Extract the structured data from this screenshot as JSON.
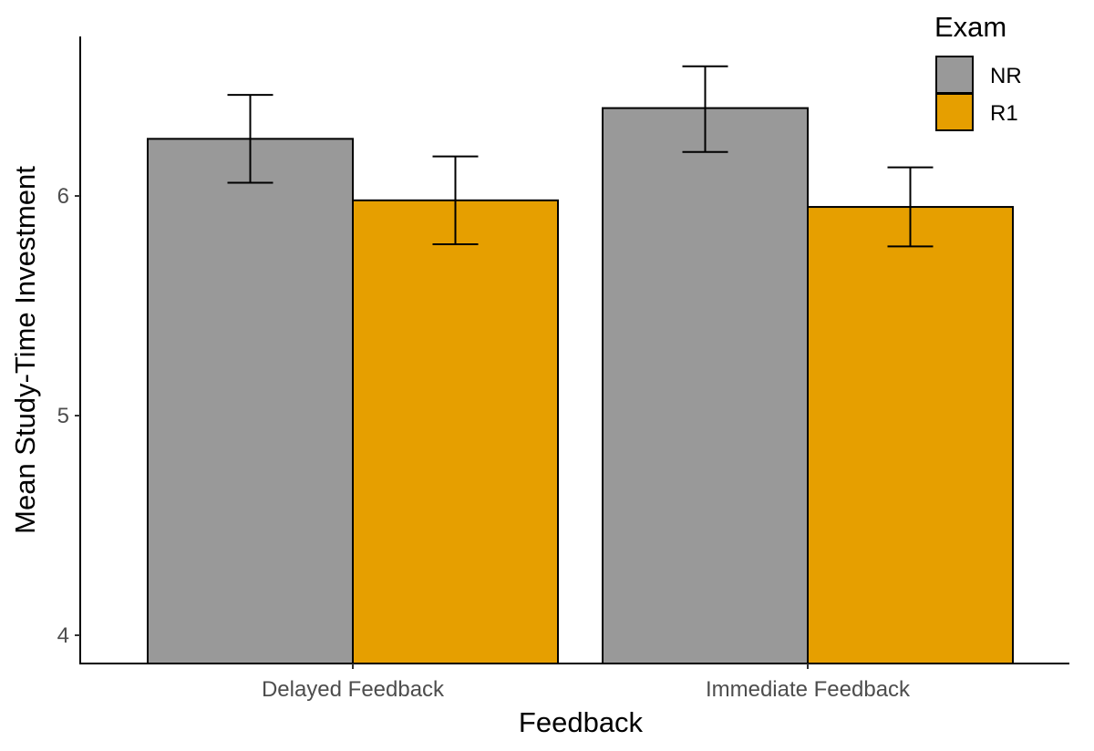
{
  "chart_data": {
    "type": "bar",
    "title": "",
    "xlabel": "Feedback",
    "ylabel": "Mean Study-Time Investment",
    "categories": [
      "Delayed Feedback",
      "Immediate Feedback"
    ],
    "ylim": [
      3.87,
      6.73
    ],
    "yticks": [
      4,
      5,
      6
    ],
    "grid": false,
    "legend": {
      "title": "Exam",
      "position": "top-right"
    },
    "series": [
      {
        "name": "NR",
        "color": "#999999",
        "values": [
          6.26,
          6.4
        ],
        "error_low": [
          6.06,
          6.2
        ],
        "error_high": [
          6.46,
          6.59
        ]
      },
      {
        "name": "R1",
        "color": "#E69F00",
        "values": [
          5.98,
          5.95
        ],
        "error_low": [
          5.78,
          5.77
        ],
        "error_high": [
          6.18,
          6.13
        ]
      }
    ]
  }
}
